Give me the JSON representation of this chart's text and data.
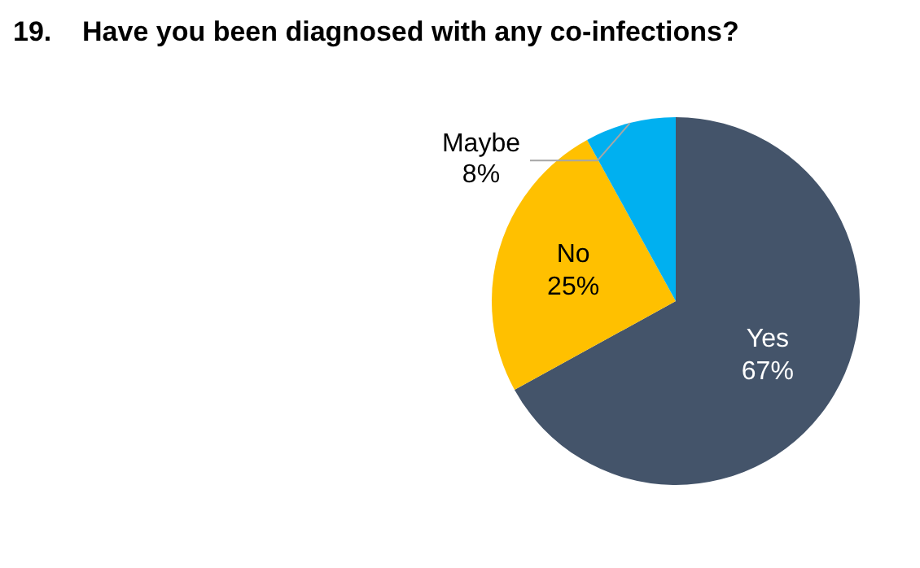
{
  "chart_data": {
    "type": "pie",
    "title": "19.    Have you been diagnosed with any co-infections?",
    "categories": [
      "Yes",
      "No",
      "Maybe"
    ],
    "values": [
      67,
      25,
      8
    ],
    "colors": [
      "#44546a",
      "#ffc000",
      "#00b0f0"
    ],
    "value_labels": [
      "67%",
      "25%",
      "8%"
    ],
    "legend": false
  }
}
